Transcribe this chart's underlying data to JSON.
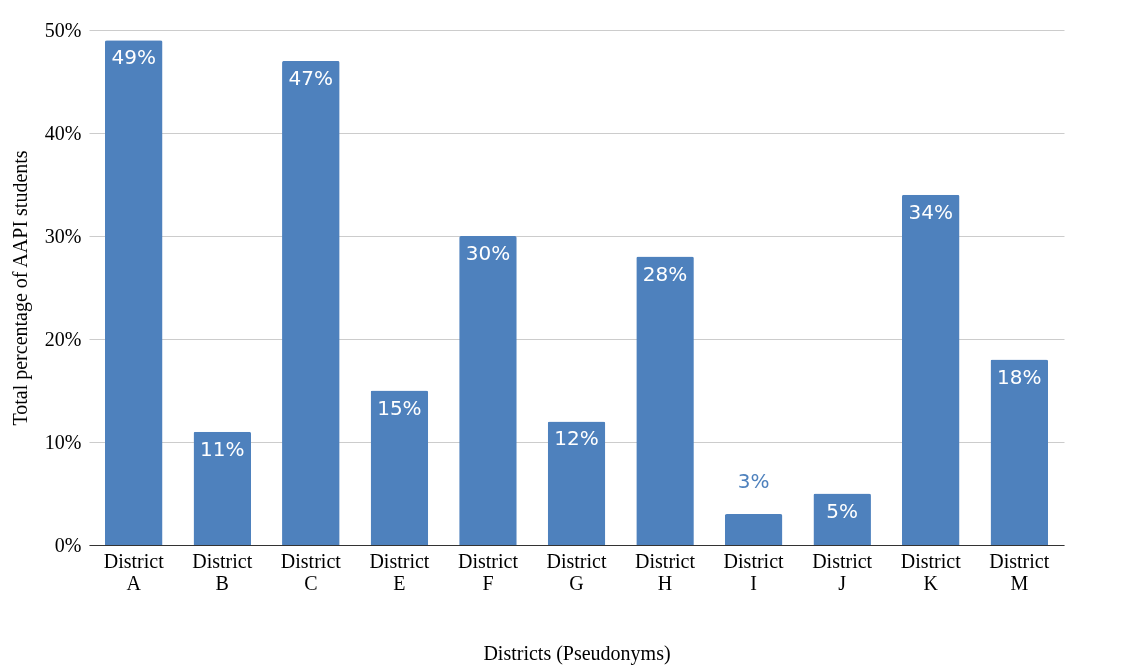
{
  "chart_data": {
    "type": "bar",
    "xlabel": "Districts (Pseudonyms)",
    "ylabel": "Total percentage of AAPI students",
    "categories": [
      "District A",
      "District B",
      "District C",
      "District E",
      "District F",
      "District G",
      "District H",
      "District I",
      "District J",
      "District K",
      "District M"
    ],
    "values": [
      49,
      11,
      47,
      15,
      30,
      12,
      28,
      3,
      5,
      34,
      18
    ],
    "value_labels": [
      "49%",
      "11%",
      "47%",
      "15%",
      "30%",
      "12%",
      "28%",
      "3%",
      "5%",
      "34%",
      "18%"
    ],
    "color": "#4e81bd",
    "ylim": [
      0,
      50
    ],
    "yticks": [
      {
        "value": 0,
        "label": "0%"
      },
      {
        "value": 10,
        "label": "10%"
      },
      {
        "value": 20,
        "label": "20%"
      },
      {
        "value": 30,
        "label": "30%"
      },
      {
        "value": 40,
        "label": "40%"
      },
      {
        "value": 50,
        "label": "50%"
      }
    ],
    "grid": "y"
  }
}
